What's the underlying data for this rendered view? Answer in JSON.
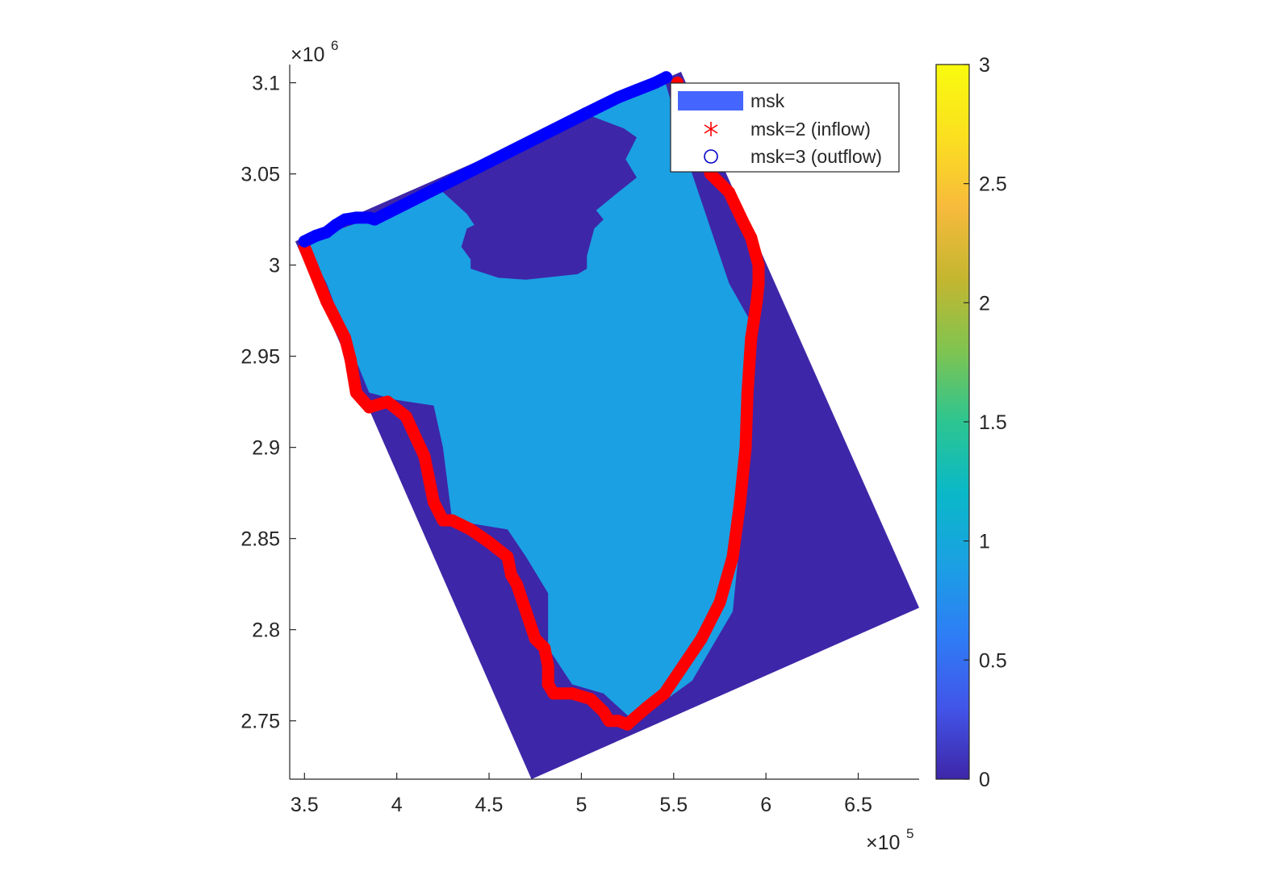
{
  "chart_data": {
    "type": "heatmap",
    "title": "",
    "xlabel": "",
    "ylabel": "",
    "x_exponent_label": "×10",
    "x_exponent_power": "5",
    "y_exponent_label": "×10",
    "y_exponent_power": "6",
    "xlim": [
      3.42,
      6.83
    ],
    "ylim": [
      2.718,
      3.11
    ],
    "x_ticks": [
      3.5,
      4,
      4.5,
      5,
      5.5,
      6,
      6.5
    ],
    "x_tick_labels": [
      "3.5",
      "4",
      "4.5",
      "5",
      "5.5",
      "6",
      "6.5"
    ],
    "y_ticks": [
      2.75,
      2.8,
      2.85,
      2.9,
      2.95,
      3,
      3.05,
      3.1
    ],
    "y_tick_labels": [
      "2.75",
      "2.8",
      "2.85",
      "2.9",
      "2.95",
      "3",
      "3.05",
      "3.1"
    ],
    "grid": false,
    "legend_position": "top-right",
    "colormap": "parula",
    "color_limits": [
      0,
      3
    ],
    "colorbar_ticks": [
      0,
      0.5,
      1,
      1.5,
      2,
      2.5,
      3
    ],
    "colorbar_tick_labels": [
      "0",
      "0.5",
      "1",
      "1.5",
      "2",
      "2.5",
      "3"
    ],
    "colorbar_stops": [
      "#3e26a8",
      "#4255e9",
      "#2e7df6",
      "#1ba0e3",
      "#0ab8c8",
      "#2cc591",
      "#80c450",
      "#c4b630",
      "#f7ba3c",
      "#fbe01f",
      "#f9fb0e"
    ],
    "domain_outline": [
      [
        3.45,
        3.013
      ],
      [
        5.54,
        3.106
      ],
      [
        6.83,
        2.812
      ],
      [
        4.73,
        2.718
      ]
    ],
    "domain_value": 0,
    "land_value": 1,
    "land_polygon": [
      [
        3.5,
        3.013
      ],
      [
        3.87,
        3.026
      ],
      [
        4.02,
        3.035
      ],
      [
        4.52,
        3.058
      ],
      [
        5.02,
        3.083
      ],
      [
        5.45,
        3.102
      ],
      [
        5.6,
        3.05
      ],
      [
        5.8,
        2.99
      ],
      [
        5.95,
        2.963
      ],
      [
        5.9,
        2.9
      ],
      [
        5.85,
        2.84
      ],
      [
        5.82,
        2.81
      ],
      [
        5.6,
        2.772
      ],
      [
        5.3,
        2.75
      ],
      [
        5.25,
        2.753
      ],
      [
        5.12,
        2.765
      ],
      [
        4.95,
        2.77
      ],
      [
        4.82,
        2.79
      ],
      [
        4.82,
        2.82
      ],
      [
        4.7,
        2.84
      ],
      [
        4.6,
        2.855
      ],
      [
        4.3,
        2.86
      ],
      [
        4.25,
        2.9
      ],
      [
        4.2,
        2.923
      ],
      [
        4.0,
        2.926
      ],
      [
        3.85,
        2.93
      ],
      [
        3.75,
        2.955
      ],
      [
        3.62,
        2.99
      ]
    ],
    "sea_inlet_polygon": [
      [
        4.0,
        3.035
      ],
      [
        4.25,
        3.04
      ],
      [
        4.38,
        3.028
      ],
      [
        4.42,
        3.022
      ],
      [
        4.38,
        3.02
      ],
      [
        4.35,
        3.01
      ],
      [
        4.4,
        3.003
      ],
      [
        4.4,
        2.998
      ],
      [
        4.55,
        2.993
      ],
      [
        4.7,
        2.992
      ],
      [
        4.98,
        2.995
      ],
      [
        5.03,
        2.998
      ],
      [
        5.03,
        3.005
      ],
      [
        5.07,
        3.02
      ],
      [
        5.12,
        3.025
      ],
      [
        5.08,
        3.03
      ],
      [
        5.2,
        3.04
      ],
      [
        5.3,
        3.048
      ],
      [
        5.24,
        3.058
      ],
      [
        5.3,
        3.07
      ],
      [
        5.23,
        3.075
      ],
      [
        5.02,
        3.083
      ],
      [
        4.52,
        3.058
      ]
    ],
    "series": [
      {
        "name": "msk=2 (inflow)",
        "msk_value": 2,
        "color": "#ff0000",
        "marker": "asterisk",
        "x": [
          3.5,
          3.62,
          3.72,
          3.75,
          3.78,
          3.85,
          3.95,
          4.05,
          4.15,
          4.2,
          4.25,
          4.3,
          4.4,
          4.5,
          4.6,
          4.62,
          4.65,
          4.7,
          4.75,
          4.8,
          4.82,
          4.82,
          4.85,
          4.95,
          5.05,
          5.12,
          5.15,
          5.2,
          5.25,
          5.27,
          5.35,
          5.45,
          5.55,
          5.65,
          5.75,
          5.82,
          5.86,
          5.89,
          5.9,
          5.92,
          5.95,
          5.96,
          5.96,
          5.92,
          5.87,
          5.8,
          5.7,
          5.65,
          5.57,
          5.52
        ],
        "y": [
          3.01,
          2.98,
          2.96,
          2.948,
          2.93,
          2.922,
          2.925,
          2.917,
          2.895,
          2.87,
          2.86,
          2.86,
          2.855,
          2.848,
          2.84,
          2.83,
          2.825,
          2.81,
          2.795,
          2.79,
          2.78,
          2.77,
          2.765,
          2.765,
          2.762,
          2.755,
          2.75,
          2.75,
          2.748,
          2.75,
          2.757,
          2.765,
          2.78,
          2.795,
          2.815,
          2.84,
          2.87,
          2.9,
          2.93,
          2.96,
          2.98,
          2.99,
          3.0,
          3.015,
          3.025,
          3.04,
          3.05,
          3.065,
          3.08,
          3.1
        ]
      },
      {
        "name": "msk=3 (outflow)",
        "msk_value": 3,
        "color": "#0000ff",
        "marker": "circle",
        "x": [
          3.5,
          3.56,
          3.62,
          3.67,
          3.72,
          3.78,
          3.85,
          3.88,
          5.02,
          5.1,
          5.2,
          5.3,
          5.4,
          5.46
        ],
        "y": [
          3.013,
          3.016,
          3.018,
          3.022,
          3.025,
          3.026,
          3.026,
          3.025,
          3.083,
          3.087,
          3.092,
          3.096,
          3.1,
          3.103
        ]
      }
    ],
    "legend": [
      {
        "label": "msk",
        "swatch": "#4466ff",
        "kind": "patch"
      },
      {
        "label": "msk=2 (inflow)",
        "swatch": "#ff0000",
        "kind": "asterisk"
      },
      {
        "label": "msk=3 (outflow)",
        "swatch": "#0000c8",
        "kind": "circle"
      }
    ]
  }
}
